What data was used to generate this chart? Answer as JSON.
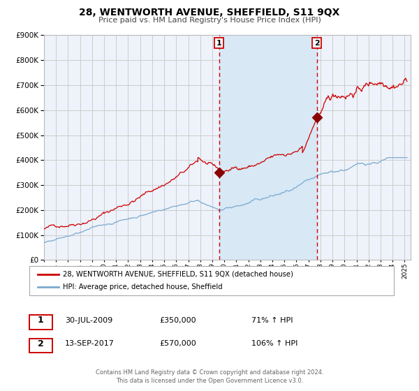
{
  "title": "28, WENTWORTH AVENUE, SHEFFIELD, S11 9QX",
  "subtitle": "Price paid vs. HM Land Registry's House Price Index (HPI)",
  "red_label": "28, WENTWORTH AVENUE, SHEFFIELD, S11 9QX (detached house)",
  "blue_label": "HPI: Average price, detached house, Sheffield",
  "footer_line1": "Contains HM Land Registry data © Crown copyright and database right 2024.",
  "footer_line2": "This data is licensed under the Open Government Licence v3.0.",
  "sale1_date": "30-JUL-2009",
  "sale1_price": "£350,000",
  "sale1_hpi": "71% ↑ HPI",
  "sale2_date": "13-SEP-2017",
  "sale2_price": "£570,000",
  "sale2_hpi": "106% ↑ HPI",
  "marker1_year": 2009.57,
  "marker1_value": 350000,
  "marker2_year": 2017.7,
  "marker2_value": 570000,
  "vline1_year": 2009.57,
  "vline2_year": 2017.7,
  "shaded_start": 2009.57,
  "shaded_end": 2017.7,
  "ylim": [
    0,
    900000
  ],
  "xlim_start": 1995.0,
  "xlim_end": 2025.5,
  "bg_color": "#ffffff",
  "plot_bg_color": "#eef2fa",
  "shade_color": "#d8e8f5",
  "grid_color": "#cccccc",
  "red_color": "#cc0000",
  "blue_color": "#7aaad0",
  "marker_color": "#880000"
}
